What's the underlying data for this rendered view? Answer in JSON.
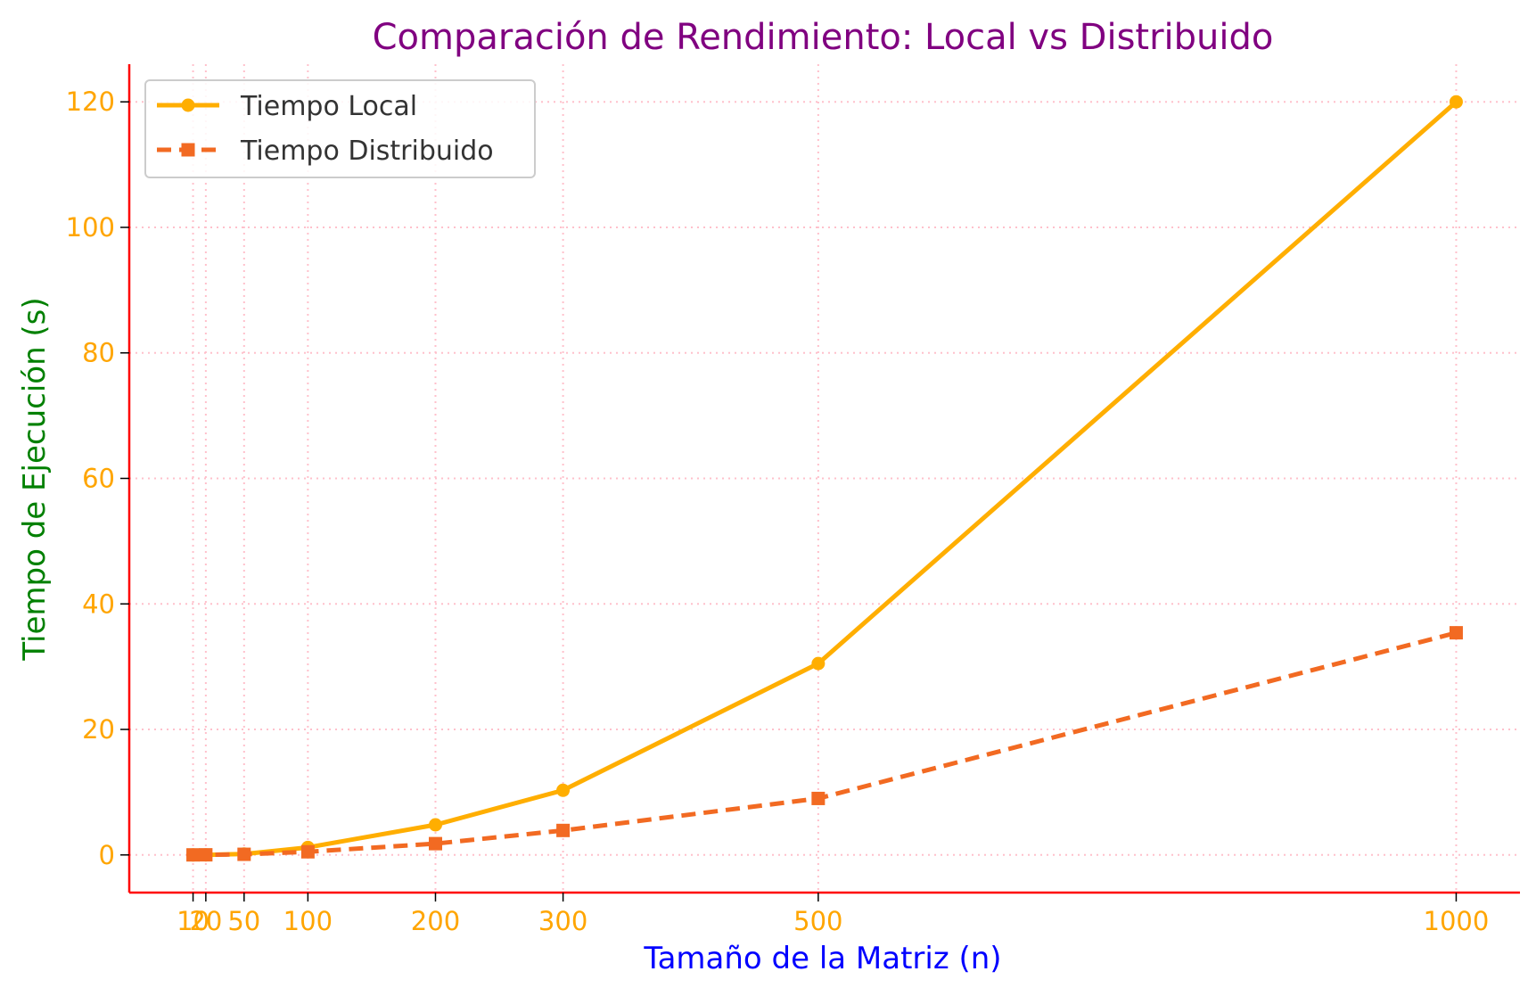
{
  "colors": {
    "title": "#800080",
    "xlabel": "#0000ff",
    "ylabel": "#008000",
    "ticks": "#ffa500",
    "axes": "#ff0000",
    "grid": "#ffc0cb",
    "local": "#ffae00",
    "distributed": "#f26a22",
    "legend_text": "#333333"
  },
  "chart_data": {
    "type": "line",
    "title": "Comparación de Rendimiento: Local vs Distribuido",
    "xlabel": "Tamaño de la Matriz (n)",
    "ylabel": "Tiempo de Ejecución (s)",
    "x": [
      10,
      20,
      50,
      100,
      200,
      300,
      500,
      1000
    ],
    "x_tick_labels": [
      "10",
      "20",
      "50",
      "100",
      "200",
      "300",
      "500",
      "1000"
    ],
    "y_ticks": [
      0,
      20,
      40,
      60,
      80,
      100,
      120
    ],
    "y_tick_labels": [
      "0",
      "20",
      "40",
      "60",
      "80",
      "100",
      "120"
    ],
    "xlim": [
      -40,
      1050
    ],
    "ylim": [
      -6,
      126
    ],
    "grid": true,
    "legend_position": "upper-left",
    "series": [
      {
        "name": "Tiempo Local",
        "values": [
          0.001,
          0.01,
          0.15,
          1.2,
          4.8,
          10.3,
          30.5,
          120.0
        ],
        "line_style": "solid",
        "marker": "circle"
      },
      {
        "name": "Tiempo Distribuido",
        "values": [
          0.01,
          0.02,
          0.1,
          0.5,
          1.8,
          3.9,
          9.0,
          35.4
        ],
        "line_style": "dashed",
        "marker": "square"
      }
    ]
  }
}
